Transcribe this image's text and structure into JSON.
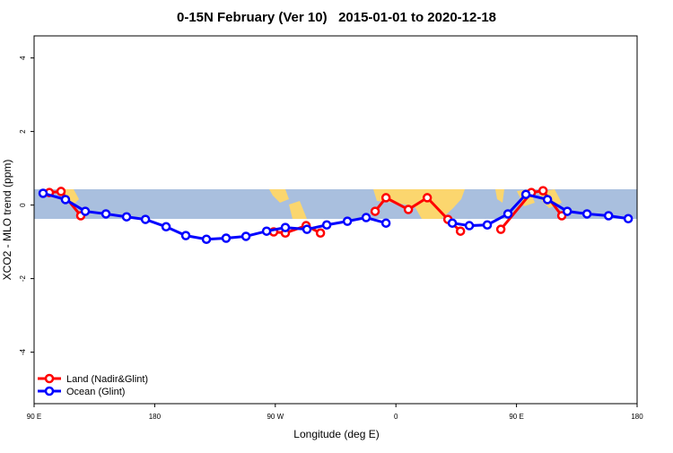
{
  "chart_data": {
    "type": "line",
    "title": "0-15N February (Ver 10)   2015-01-01 to 2020-12-18",
    "x_label": "Longitude (deg E)",
    "y_label": "XCO2 - MLO trend (ppm)",
    "xlim": [
      90,
      540
    ],
    "xticks": [
      {
        "value": 90,
        "label": "90 E"
      },
      180,
      {
        "value": 270,
        "label": "90 W"
      },
      {
        "value": 360,
        "label": "0"
      },
      {
        "value": 450,
        "label": "90 E"
      },
      {
        "value": 540,
        "label": "180"
      }
    ],
    "ylim": [
      -5.4,
      4.6
    ],
    "yticks": [
      4,
      2,
      0,
      -2,
      -4
    ],
    "legend": "bottom-left",
    "series": [
      {
        "name": "Land (Nadir&Glint)",
        "color": "#ff0000",
        "x": [
          101.4,
          110.1,
          124.8,
          null,
          268.8,
          277.5,
          293.0,
          303.7,
          null,
          344.5,
          352.6,
          369.3,
          383.4,
          398.8,
          408.2,
          null,
          438.3,
          461.1,
          469.8,
          483.8
        ],
        "values": [
          0.34,
          0.37,
          -0.29,
          null,
          -0.73,
          -0.76,
          -0.56,
          -0.76,
          null,
          -0.17,
          0.2,
          -0.12,
          0.2,
          -0.39,
          -0.71,
          null,
          -0.66,
          0.34,
          0.39,
          -0.29
        ]
      },
      {
        "name": "Ocean (Glint)",
        "color": "#0000ff",
        "x": [
          96.7,
          113.4,
          128.2,
          143.6,
          159.0,
          173.1,
          188.5,
          203.2,
          218.6,
          233.3,
          248.1,
          263.5,
          277.5,
          293.6,
          308.4,
          323.8,
          337.8,
          352.6,
          null,
          402.1,
          414.8,
          428.2,
          443.6,
          457.0,
          473.1,
          487.9,
          502.6,
          518.7,
          533.4
        ],
        "values": [
          0.32,
          0.15,
          -0.17,
          -0.24,
          -0.32,
          -0.39,
          -0.59,
          -0.83,
          -0.93,
          -0.9,
          -0.85,
          -0.71,
          -0.61,
          -0.66,
          -0.54,
          -0.44,
          -0.34,
          -0.49,
          null,
          -0.49,
          -0.56,
          -0.54,
          -0.24,
          0.29,
          0.15,
          -0.17,
          -0.24,
          -0.29,
          -0.37
        ]
      }
    ]
  }
}
